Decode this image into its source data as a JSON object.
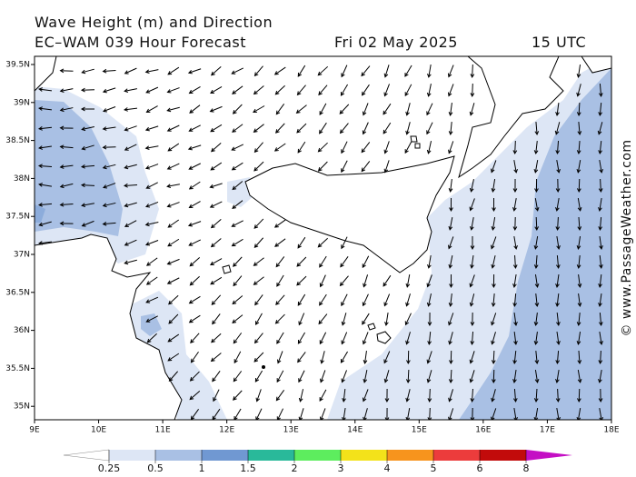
{
  "header": {
    "title": "Wave Height (m) and Direction",
    "model": "EC–WAM 039 Hour Forecast",
    "date": "Fri 02 May 2025",
    "time": "15 UTC"
  },
  "map": {
    "lat_labels": [
      "39.5N",
      "39N",
      "38.5N",
      "38N",
      "37.5N",
      "37N",
      "36.5N",
      "36N",
      "35.5N",
      "35N"
    ],
    "lon_labels": [
      "9E",
      "10E",
      "11E",
      "12E",
      "13E",
      "14E",
      "15E",
      "16E",
      "17E",
      "18E"
    ]
  },
  "legend": {
    "labels": [
      "0.25",
      "0.5",
      "1",
      "1.5",
      "2",
      "3",
      "4",
      "5",
      "6",
      "8"
    ],
    "colors": [
      "#ffffff",
      "#dde6f5",
      "#a9c0e4",
      "#7098d2",
      "#29b99a",
      "#5ded5e",
      "#f3e21a",
      "#f7941d",
      "#ec3c3c",
      "#c20b0b",
      "#c40fc4"
    ]
  },
  "watermark": "© www.PassageWeather.com"
}
